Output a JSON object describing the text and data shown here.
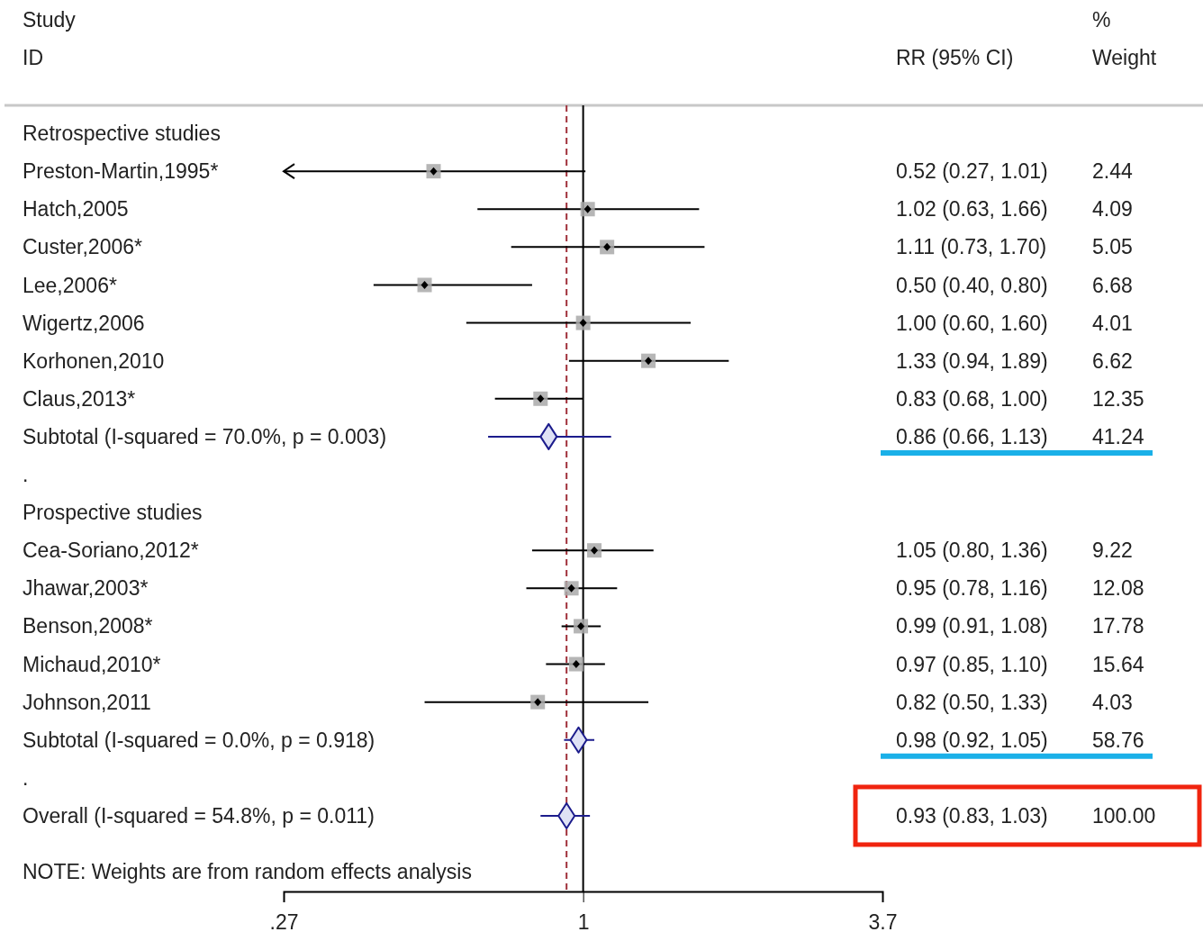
{
  "chart_data": {
    "type": "scatter",
    "orientation": "horizontal",
    "log": "x",
    "categories": [
      "Retrospective studies",
      "Preston-Martin,1995*",
      "Hatch,2005",
      "Custer,2006*",
      "Lee,2006*",
      "Wigertz,2006",
      "Korhonen,2010",
      "Claus,2013*",
      "Subtotal  (I-squared = 70.0%, p = 0.003)",
      ".",
      "Prospective studies",
      "Cea-Soriano,2012*",
      "Jhawar,2003*",
      "Benson,2008*",
      "Michaud,2010*",
      "Johnson,2011",
      "Subtotal  (I-squared = 0.0%, p = 0.918)",
      ".",
      "Overall  (I-squared = 54.8%, p = 0.011)"
    ],
    "xlim": [
      0.27,
      3.7
    ],
    "xticks": [
      {
        "value": 0.27,
        "label": ".27"
      },
      1,
      3.7
    ],
    "series": [
      {
        "marker": "square",
        "color": "#a9a9a9",
        "values": [
          null,
          0.52,
          1.02,
          1.11,
          0.5,
          1.0,
          1.33,
          0.83,
          null,
          null,
          null,
          1.05,
          0.95,
          0.99,
          0.97,
          0.82,
          null,
          null,
          null
        ],
        "errors": [
          null,
          [
            0.27,
            1.01
          ],
          [
            0.63,
            1.66
          ],
          [
            0.73,
            1.7
          ],
          [
            0.4,
            0.8
          ],
          [
            0.6,
            1.6
          ],
          [
            0.94,
            1.89
          ],
          [
            0.68,
            1.0
          ],
          null,
          null,
          null,
          [
            0.8,
            1.36
          ],
          [
            0.78,
            1.16
          ],
          [
            0.91,
            1.08
          ],
          [
            0.85,
            1.1
          ],
          [
            0.5,
            1.33
          ],
          null,
          null,
          null
        ],
        "value_labels": [
          null,
          "0.52 (0.27, 1.01) 2.44",
          "1.02 (0.63, 1.66) 4.09",
          "1.11 (0.73, 1.70) 5.05",
          "0.50 (0.40, 0.80) 6.68",
          "1.00 (0.60, 1.60) 4.01",
          "1.33 (0.94, 1.89) 6.62",
          "0.83 (0.68, 1.00) 12.35",
          null,
          null,
          null,
          "1.05 (0.80, 1.36) 9.22",
          "0.95 (0.78, 1.16) 12.08",
          "0.99 (0.91, 1.08) 17.78",
          "0.97 (0.85, 1.10) 15.64",
          "0.82 (0.50, 1.33) 4.03",
          null,
          null,
          null
        ]
      },
      {
        "marker": "diamond",
        "color": "#1c1c8c",
        "values": [
          null,
          null,
          null,
          null,
          null,
          null,
          null,
          null,
          0.86,
          null,
          null,
          null,
          null,
          null,
          null,
          null,
          0.98,
          null,
          0.93
        ],
        "errors": [
          null,
          null,
          null,
          null,
          null,
          null,
          null,
          null,
          [
            0.66,
            1.13
          ],
          null,
          null,
          null,
          null,
          null,
          null,
          null,
          [
            0.92,
            1.05
          ],
          null,
          [
            0.83,
            1.03
          ]
        ],
        "value_labels": [
          null,
          null,
          null,
          null,
          null,
          null,
          null,
          null,
          "0.86 (0.66, 1.13) 41.24",
          null,
          null,
          null,
          null,
          null,
          null,
          null,
          "0.98 (0.92, 1.05) 58.76",
          null,
          "0.93 (0.83, 1.03) 100.00"
        ]
      }
    ],
    "ref_lines": [
      {
        "axis": "x",
        "value": 1,
        "color": "#000000",
        "line_style": "solid"
      },
      {
        "axis": "x",
        "value": 0.93,
        "color": "#a0303a",
        "line_style": "dashed"
      }
    ],
    "annotations": [
      "Study",
      "ID",
      "RR (95% CI)",
      "%",
      "Weight",
      "NOTE: Weights are from random effects analysis"
    ]
  }
}
